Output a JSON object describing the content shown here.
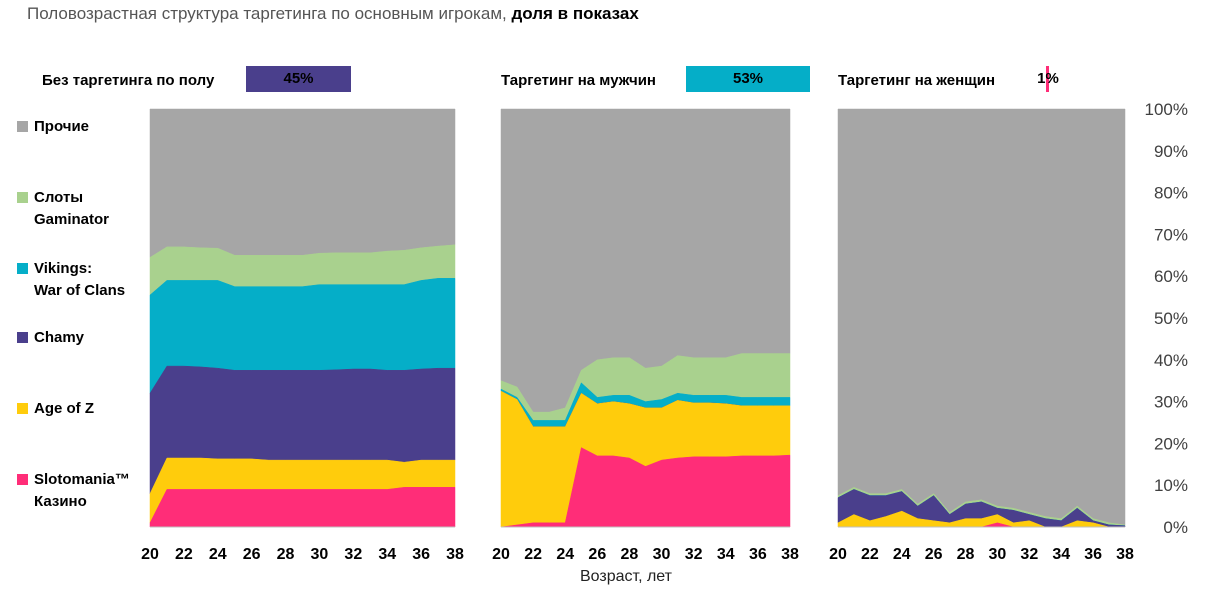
{
  "title_regular": "Половозрастная структура таргетинга по основным игрокам,",
  "title_bold": "доля в показах",
  "xlabel": "Возраст, лет",
  "colors": {
    "other": "#a6a6a6",
    "slots": "#a9d18e",
    "vikings": "#05aec8",
    "chamy": "#4a3f8c",
    "ageofz": "#ffcc0c",
    "slotomania": "#ff2d78",
    "bar_none": "#4a3f8c",
    "bar_male": "#05aec8",
    "bar_female": "#ff2d78"
  },
  "legend": [
    {
      "key": "other",
      "line1": "Прочие",
      "line2": ""
    },
    {
      "key": "slots",
      "line1": "Слоты",
      "line2": "Gaminator"
    },
    {
      "key": "vikings",
      "line1": "Vikings:",
      "line2": "War of Clans"
    },
    {
      "key": "chamy",
      "line1": "Chamy",
      "line2": ""
    },
    {
      "key": "ageofz",
      "line1": "Age of Z",
      "line2": ""
    },
    {
      "key": "slotomania",
      "line1": "Slotomania™",
      "line2": "Казино"
    }
  ],
  "chart_data": [
    {
      "type": "area",
      "stacked": true,
      "panel_title": "Без таргетинга по полу",
      "panel_share": "45%",
      "share_value": 45,
      "share_color": "bar_none",
      "x": [
        20,
        21,
        22,
        23,
        24,
        25,
        26,
        27,
        28,
        29,
        30,
        31,
        32,
        33,
        34,
        35,
        36,
        37,
        38
      ],
      "xticks": [
        "20",
        "22",
        "24",
        "26",
        "28",
        "30",
        "32",
        "34",
        "36",
        "38"
      ],
      "ylim": [
        0,
        100
      ],
      "series_cumulative": true,
      "series": [
        {
          "key": "slotomania",
          "values": [
            1,
            9,
            9,
            9,
            9,
            9,
            9,
            9,
            9,
            9,
            9,
            9,
            9,
            9,
            9,
            9.5,
            9.5,
            9.5,
            9.5
          ]
        },
        {
          "key": "ageofz",
          "values": [
            8,
            16.5,
            16.5,
            16.5,
            16.3,
            16.3,
            16.3,
            16,
            16,
            16,
            16,
            16,
            16,
            16,
            16,
            15.5,
            16,
            16,
            16
          ]
        },
        {
          "key": "chamy",
          "values": [
            32,
            38.5,
            38.5,
            38.3,
            38,
            37.5,
            37.5,
            37.5,
            37.5,
            37.5,
            37.5,
            37.6,
            37.8,
            37.8,
            37.5,
            37.5,
            37.8,
            38,
            38
          ]
        },
        {
          "key": "vikings",
          "values": [
            55.5,
            59,
            59,
            59,
            59,
            57.5,
            57.5,
            57.5,
            57.5,
            57.5,
            58,
            58,
            58,
            58,
            58,
            58,
            59,
            59.5,
            59.5
          ]
        },
        {
          "key": "slots",
          "values": [
            64.5,
            67,
            67,
            66.8,
            66.7,
            65,
            65,
            65,
            65,
            65,
            65.5,
            65.6,
            65.6,
            65.6,
            66,
            66.2,
            66.8,
            67.2,
            67.5
          ]
        },
        {
          "key": "other",
          "values": [
            100,
            100,
            100,
            100,
            100,
            100,
            100,
            100,
            100,
            100,
            100,
            100,
            100,
            100,
            100,
            100,
            100,
            100,
            100
          ]
        }
      ]
    },
    {
      "type": "area",
      "stacked": true,
      "panel_title": "Таргетинг на мужчин",
      "panel_share": "53%",
      "share_value": 53,
      "share_color": "bar_male",
      "x": [
        20,
        21,
        22,
        23,
        24,
        25,
        26,
        27,
        28,
        29,
        30,
        31,
        32,
        33,
        34,
        35,
        36,
        37,
        38
      ],
      "xticks": [
        "20",
        "22",
        "24",
        "26",
        "28",
        "30",
        "32",
        "34",
        "36",
        "38"
      ],
      "ylim": [
        0,
        100
      ],
      "series_cumulative": true,
      "series": [
        {
          "key": "slotomania",
          "values": [
            0,
            0.5,
            1,
            1,
            1,
            19,
            17,
            17,
            16.5,
            14.5,
            16,
            16.5,
            16.8,
            16.8,
            16.8,
            17,
            17,
            17,
            17.2
          ]
        },
        {
          "key": "ageofz",
          "values": [
            32.5,
            30.5,
            24,
            24,
            24,
            32,
            29.5,
            30,
            29.5,
            28.5,
            28.5,
            30.3,
            29.7,
            29.7,
            29.5,
            29,
            29,
            29,
            29
          ]
        },
        {
          "key": "chamy",
          "values": [
            32.5,
            30.5,
            24,
            24,
            24,
            32,
            29.5,
            30,
            29.5,
            28.5,
            28.5,
            30.3,
            29.7,
            29.7,
            29.5,
            29,
            29,
            29,
            29
          ]
        },
        {
          "key": "vikings",
          "values": [
            33,
            31,
            25.5,
            25.5,
            25.5,
            34.5,
            31,
            31.5,
            31.5,
            30,
            30.5,
            32,
            31.5,
            31.5,
            31.5,
            31,
            31,
            31,
            31
          ]
        },
        {
          "key": "slots",
          "values": [
            35,
            33.5,
            27.5,
            27.5,
            28.5,
            37.5,
            40,
            40.5,
            40.5,
            38,
            38.5,
            41,
            40.5,
            40.5,
            40.5,
            41.5,
            41.5,
            41.5,
            41.5
          ]
        },
        {
          "key": "other",
          "values": [
            100,
            100,
            100,
            100,
            100,
            100,
            100,
            100,
            100,
            100,
            100,
            100,
            100,
            100,
            100,
            100,
            100,
            100,
            100
          ]
        }
      ]
    },
    {
      "type": "area",
      "stacked": true,
      "panel_title": "Таргетинг на женщин",
      "panel_share": "1%",
      "share_value": 1,
      "share_color": "bar_female",
      "x": [
        20,
        21,
        22,
        23,
        24,
        25,
        26,
        27,
        28,
        29,
        30,
        31,
        32,
        33,
        34,
        35,
        36,
        37,
        38
      ],
      "xticks": [
        "20",
        "22",
        "24",
        "26",
        "28",
        "30",
        "32",
        "34",
        "36",
        "38"
      ],
      "ylim": [
        0,
        100
      ],
      "y_tick_labels": [
        "0%",
        "10%",
        "20%",
        "30%",
        "40%",
        "50%",
        "60%",
        "70%",
        "80%",
        "90%",
        "100%"
      ],
      "series_cumulative": true,
      "series": [
        {
          "key": "slotomania",
          "values": [
            0,
            0,
            0,
            0,
            0,
            0,
            0,
            0,
            0,
            0,
            1,
            0,
            0,
            0,
            0,
            0,
            0,
            0,
            0
          ]
        },
        {
          "key": "ageofz",
          "values": [
            1,
            3,
            1.5,
            2.5,
            3.8,
            2,
            1.5,
            1,
            2,
            2,
            3,
            1,
            1.5,
            0,
            0,
            1.5,
            1,
            0,
            0
          ]
        },
        {
          "key": "chamy",
          "values": [
            7,
            9,
            7.5,
            7.5,
            8.5,
            5,
            7.5,
            3,
            5.5,
            6,
            4.5,
            4,
            3,
            2,
            1.5,
            4.5,
            1.5,
            0.5,
            0.3
          ]
        },
        {
          "key": "vikings",
          "values": [
            7,
            9,
            7.5,
            7.5,
            8.5,
            5,
            7.5,
            3,
            5.5,
            6,
            4.5,
            4,
            3,
            2,
            1.5,
            4.5,
            1.5,
            0.5,
            0.3
          ]
        },
        {
          "key": "slots",
          "values": [
            7.5,
            9.5,
            8,
            8,
            9,
            5.5,
            8,
            3.5,
            6,
            6.5,
            5,
            4.5,
            3.5,
            2.5,
            2,
            5,
            2,
            1,
            0.5
          ]
        },
        {
          "key": "other",
          "values": [
            100,
            100,
            100,
            100,
            100,
            100,
            100,
            100,
            100,
            100,
            100,
            100,
            100,
            100,
            100,
            100,
            100,
            100,
            100
          ]
        }
      ]
    }
  ]
}
